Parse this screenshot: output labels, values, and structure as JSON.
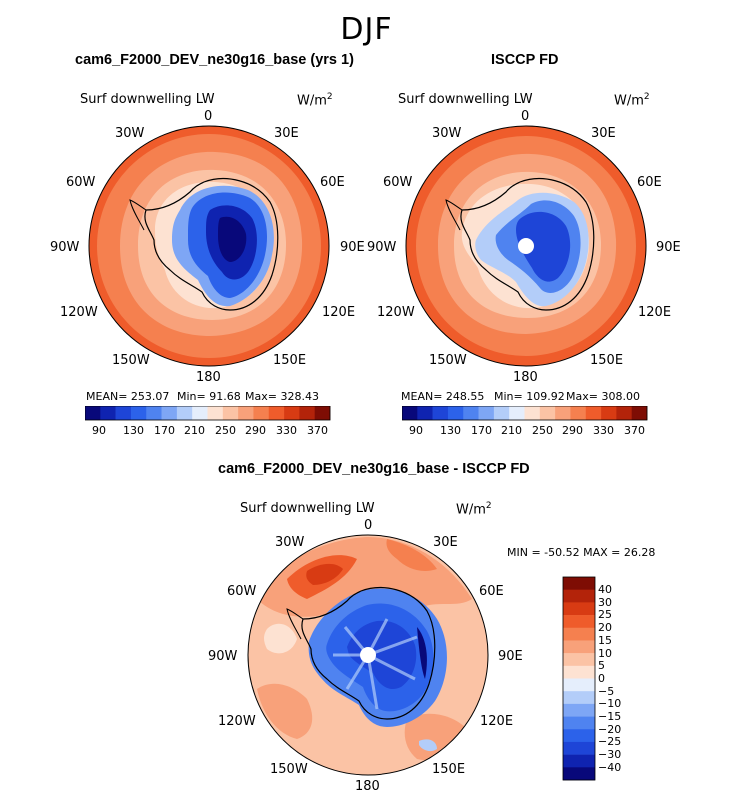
{
  "figure": {
    "season_title": "DJF"
  },
  "panels": [
    {
      "title": "cam6_F2000_DEV_ne30g16_base (yrs 1)",
      "variable": "Surf downwelling LW",
      "units": "W/m",
      "units_exp": "2",
      "stats": {
        "mean": "MEAN= 253.07",
        "min": "Min= 91.68",
        "max": "Max= 328.43"
      },
      "colorbar": {
        "ticks": [
          "90",
          "130",
          "170",
          "210",
          "250",
          "290",
          "330",
          "370"
        ]
      }
    },
    {
      "title": "ISCCP FD",
      "variable": "Surf downwelling LW",
      "units": "W/m",
      "units_exp": "2",
      "stats": {
        "mean": "MEAN= 248.55",
        "min": "Min= 109.92",
        "max": "Max= 308.00"
      },
      "colorbar": {
        "ticks": [
          "90",
          "130",
          "170",
          "210",
          "250",
          "290",
          "330",
          "370"
        ]
      }
    },
    {
      "title": "cam6_F2000_DEV_ne30g16_base - ISCCP FD",
      "variable": "Surf downwelling LW",
      "units": "W/m",
      "units_exp": "2",
      "stats": {
        "minmax": "MIN = -50.52 MAX =  26.28"
      },
      "colorbar": {
        "ticks": [
          "40",
          "30",
          "25",
          "20",
          "15",
          "10",
          "5",
          "0",
          "−5",
          "−10",
          "−15",
          "−20",
          "−25",
          "−30",
          "−40"
        ]
      }
    }
  ],
  "longitude_labels": {
    "top": "0",
    "lon30e": "30E",
    "lon60e": "60E",
    "lon90e": "90E",
    "lon120e": "120E",
    "lon150e": "150E",
    "bottom": "180",
    "lon150w": "150W",
    "lon120w": "120W",
    "lon90w": "90W",
    "lon60w": "60W",
    "lon30w": "30W"
  },
  "colors": {
    "abs_scale": [
      "#08087a",
      "#0f23b0",
      "#1e45d7",
      "#2c62ea",
      "#4f83f0",
      "#7ea6f5",
      "#b3cdf9",
      "#e5eefc",
      "#fde2d2",
      "#fbc3a5",
      "#f8a17a",
      "#f5804f",
      "#ef5c2b",
      "#d83b13",
      "#b3230a",
      "#7e0d04"
    ],
    "diff_scale": [
      "#7e0d04",
      "#b3230a",
      "#d83b13",
      "#ef5c2b",
      "#f5804f",
      "#f8a17a",
      "#fbc3a5",
      "#fde2d2",
      "#e5eefc",
      "#b3cdf9",
      "#7ea6f5",
      "#4f83f0",
      "#2c62ea",
      "#1e45d7",
      "#0f23b0",
      "#08087a"
    ]
  }
}
